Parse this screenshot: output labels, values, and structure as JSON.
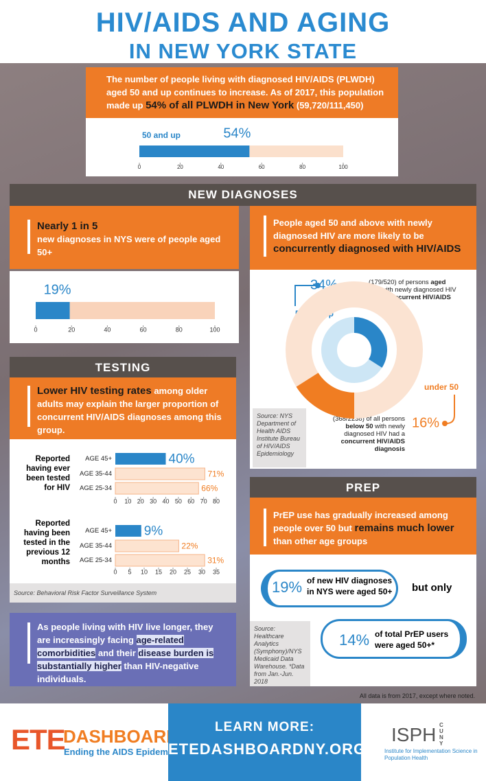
{
  "header": {
    "title": "HIV/AIDS AND AGING",
    "subtitle": "IN NEW YORK STATE"
  },
  "intro": {
    "text": [
      "The number of people living with diagnosed HIV/AIDS (PLWDH) aged 50 and up continues to increase.  As of 2017, this population made up ",
      "54% of all PLWDH in New York",
      " (59,720/111,450)"
    ]
  },
  "new_diagnoses": {
    "heading": "NEW DIAGNOSES",
    "left": {
      "lead": "Nearly 1 in 5",
      "text": "new diagnoses in NYS were of people aged 50+"
    },
    "right": {
      "text": [
        "People aged 50 and above with newly diagnosed HIV are more likely to be ",
        "concurrently diagnosed with HIV/AIDS"
      ]
    },
    "source": "Source: NYS Department of Health AIDS Institute Bureau of HIV/AIDS Epidemiology"
  },
  "testing": {
    "heading": "TESTING",
    "text": [
      "Lower HIV testing rates",
      " among older adults may explain the larger proportion of concurrent HIV/AIDS diagnoses among this group."
    ],
    "source": "Source: Behavioral Risk Factor Surveillance System"
  },
  "comorbidities": {
    "text": [
      "As people living with HIV live longer, they are increasingly facing ",
      "age-related comorbidities",
      " and their ",
      "disease burden is substantially higher",
      " than HIV-negative individuals."
    ]
  },
  "prep": {
    "heading": "PREP",
    "text": [
      "PrEP use has gradually increased among people over 50 but ",
      "remains much lower",
      " than other age groups"
    ],
    "stats": [
      {
        "value": "19%",
        "text": "of new HIV diagnoses in NYS were aged 50+"
      },
      {
        "value": "14%",
        "text": "of total PrEP users were aged 50+*"
      }
    ],
    "connector": "but only",
    "source": "Source: Healthcare Analytics (Symphony)/NYS Medicaid Data Warehouse. *Data from Jan.-Jun. 2018"
  },
  "note": "All data is from 2017, except where noted.",
  "footer": {
    "ete": "ETE",
    "dashboard": "DASHBOARD",
    "tagline": "Ending the AIDS Epidemic",
    "learn_more": "LEARN MORE:",
    "url": "ETEDASHBOARDNY.ORG",
    "isph": "ISPH",
    "cuny": "CUNY",
    "isph_name": "Institute for Implementation Science in Population Health"
  },
  "chart_data": [
    {
      "type": "bar",
      "categories": [
        "50 and up"
      ],
      "values": [
        54
      ],
      "value_labels": [
        "54%"
      ],
      "color": [
        "#2a86c8"
      ],
      "xlim": [
        0,
        100
      ],
      "xticks": [
        0,
        20,
        40,
        60,
        80,
        100
      ]
    },
    {
      "type": "bar",
      "values": [
        19
      ],
      "value_labels": [
        "19%"
      ],
      "color": [
        "#2a86c8"
      ],
      "xlim": [
        0,
        100
      ],
      "xticks": [
        0,
        20,
        40,
        60,
        80,
        100
      ]
    },
    {
      "type": "donut",
      "series": [
        {
          "name": "50 and up",
          "color": "#2a86c8",
          "values": [
            34
          ],
          "value_labels": [
            "34%"
          ]
        },
        {
          "name": "under 50",
          "color": "#f07d22",
          "values": [
            16
          ],
          "value_labels": [
            "16%"
          ]
        }
      ],
      "annotations": [
        [
          "(179/520) of persons ",
          "aged 50+",
          " with newly diagnosed HIV had a ",
          "concurrent HIV/AIDS diagnosis"
        ],
        [
          "(368/2238) of all persons ",
          "below 50",
          " with newly diagnosed HIV had a ",
          "concurrent HIV/AIDS diagnosis"
        ]
      ]
    },
    {
      "type": "bar",
      "title": "Reported having ever been tested for HIV",
      "categories": [
        "AGE 45+",
        "AGE 35-44",
        "AGE 25-34"
      ],
      "values": [
        40,
        71,
        66
      ],
      "value_labels": [
        "40%",
        "71%",
        "66%"
      ],
      "color": [
        "#2a86c8",
        "#fde3d0",
        "#fde3d0"
      ],
      "xlim": [
        0,
        80
      ],
      "xticks": [
        0,
        10,
        20,
        30,
        40,
        50,
        60,
        70,
        80
      ]
    },
    {
      "type": "bar",
      "title": "Reported having been tested in the previous 12 months",
      "categories": [
        "AGE 45+",
        "AGE 35-44",
        "AGE 25-34"
      ],
      "values": [
        9,
        22,
        31
      ],
      "value_labels": [
        "9%",
        "22%",
        "31%"
      ],
      "color": [
        "#2a86c8",
        "#fde3d0",
        "#fde3d0"
      ],
      "xlim": [
        0,
        35
      ],
      "xticks": [
        0,
        5,
        10,
        15,
        20,
        25,
        30,
        35
      ]
    }
  ]
}
